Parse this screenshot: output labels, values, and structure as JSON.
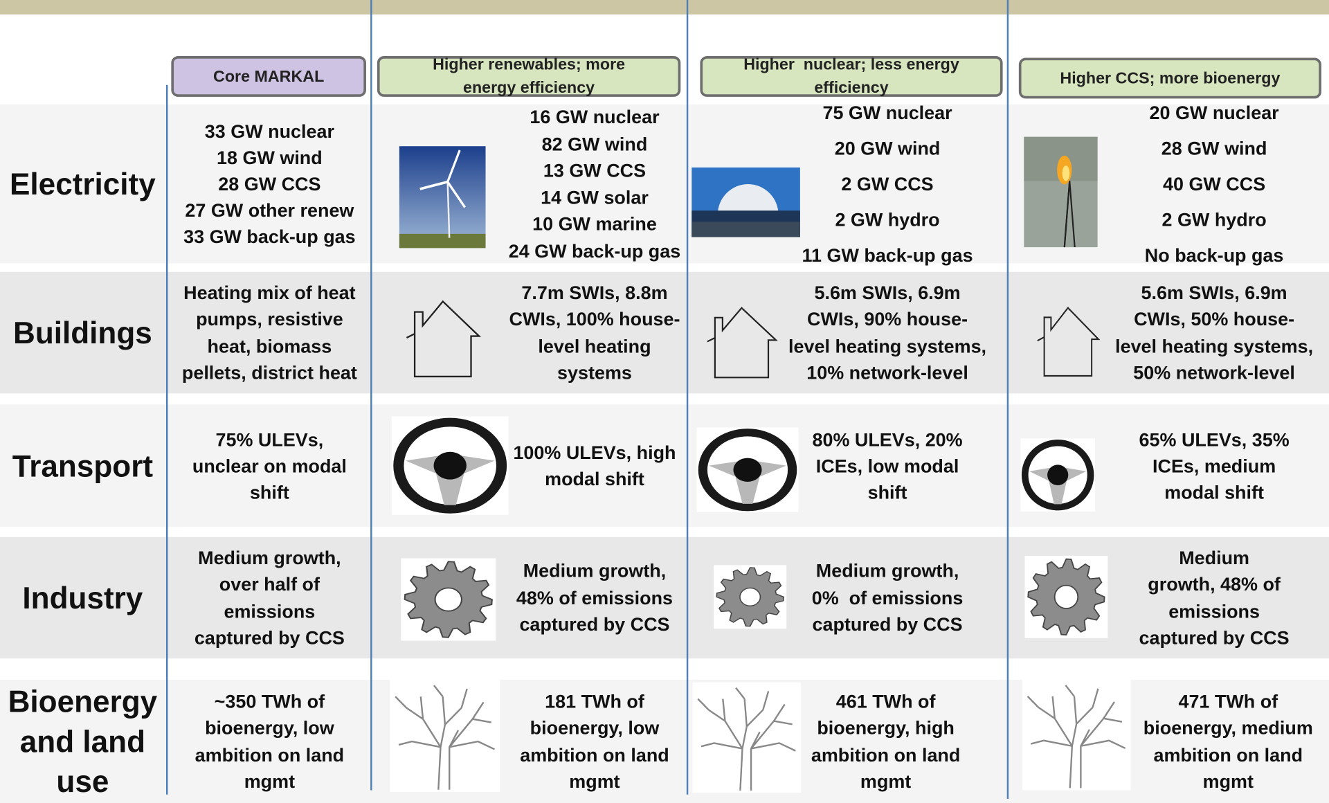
{
  "header": {
    "columns": [
      "Core MARKAL",
      "Higher renewables; more energy efficiency",
      "Higher  nuclear; less energy efficiency",
      "Higher CCS; more bioenergy"
    ]
  },
  "rows": [
    {
      "label": "Electricity",
      "cells": [
        [
          "33 GW nuclear",
          "18 GW wind",
          "28 GW CCS",
          "27 GW other renew",
          "33 GW back-up gas"
        ],
        [
          "16 GW nuclear",
          "82 GW wind",
          "13 GW CCS",
          "14 GW solar",
          "10 GW marine",
          "24 GW back-up gas"
        ],
        [
          "75 GW nuclear",
          "20 GW wind",
          "2 GW CCS",
          "2 GW hydro",
          "11 GW back-up gas"
        ],
        [
          "20 GW nuclear",
          "28 GW wind",
          "40 GW CCS",
          "2 GW hydro",
          "No back-up gas"
        ]
      ]
    },
    {
      "label": "Buildings",
      "cells": [
        [
          "Heating mix of heat",
          "pumps, resistive",
          "heat, biomass",
          "pellets, district heat"
        ],
        [
          "7.7m SWIs, 8.8m",
          "CWIs, 100% house-",
          "level heating",
          "systems"
        ],
        [
          "5.6m SWIs, 6.9m",
          "CWIs, 90% house-",
          "level heating systems,",
          "10% network-level"
        ],
        [
          "5.6m SWIs, 6.9m",
          "CWIs, 50% house-",
          "level heating systems,",
          "50% network-level"
        ]
      ]
    },
    {
      "label": "Transport",
      "cells": [
        [
          "75% ULEVs,",
          "unclear on modal",
          "shift"
        ],
        [
          "100% ULEVs, high",
          "modal shift"
        ],
        [
          "80% ULEVs, 20%",
          "ICEs, low modal",
          "shift"
        ],
        [
          "65% ULEVs, 35%",
          "ICEs, medium",
          "modal shift"
        ]
      ]
    },
    {
      "label": "Industry",
      "cells": [
        [
          "Medium growth,",
          "over half of",
          "emissions",
          "captured by CCS"
        ],
        [
          "Medium growth,",
          "48% of emissions",
          "captured by CCS"
        ],
        [
          "Medium growth,",
          "0%  of emissions",
          "captured by CCS"
        ],
        [
          "Medium",
          "growth, 48% of",
          "emissions",
          "captured by CCS"
        ]
      ]
    },
    {
      "label": "Bioenergy and land use",
      "cells": [
        [
          "~350 TWh of",
          "bioenergy, low",
          "ambition on land",
          "mgmt"
        ],
        [
          "181 TWh of",
          "bioenergy, low",
          "ambition on land",
          "mgmt"
        ],
        [
          "461 TWh of",
          "bioenergy, high",
          "ambition on land",
          "mgmt"
        ],
        [
          "471 TWh of",
          "bioenergy, medium",
          "ambition on land",
          "mgmt"
        ]
      ]
    }
  ]
}
